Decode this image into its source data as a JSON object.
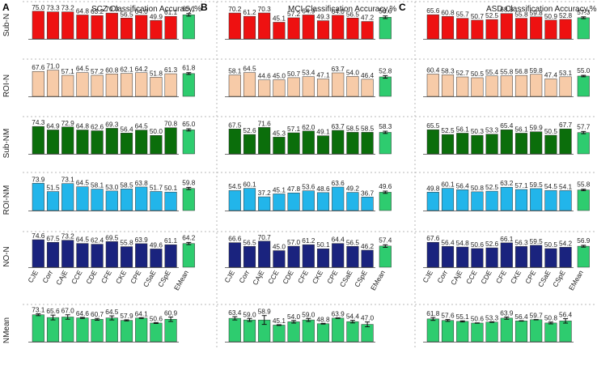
{
  "chart_data": {
    "type": "bar",
    "metrics": [
      "CJE",
      "Corr",
      "CAjE",
      "CCE",
      "CDE",
      "CFE",
      "CKE",
      "CPE",
      "CSaE",
      "CSpE"
    ],
    "mean_label": "EMean",
    "row_labels": [
      "Sub-N",
      "ROI-N",
      "Sub-NM",
      "ROI-NM",
      "NO-N",
      "NMean"
    ],
    "colors": [
      "#ee1111",
      "#f7cba8",
      "#0b6e0b",
      "#22b5ea",
      "#1a237e",
      "#2ecc6f"
    ],
    "mean_color": "#2ecc6f",
    "ylim": [
      0,
      90
    ],
    "panels": [
      {
        "letter": "A",
        "title": "SCZ Classification Accuracy,%",
        "rows": [
          {
            "values": [
              75.0,
              73.3,
              73.2,
              64.8,
              63.2,
              70.0,
              56.5,
              64.0,
              49.9,
              61.1
            ],
            "mean": 65.1,
            "mean_err": 3.5
          },
          {
            "values": [
              67.6,
              71.0,
              57.1,
              64.5,
              57.2,
              60.8,
              62.1,
              64.2,
              51.8,
              61.3
            ],
            "mean": 61.8,
            "mean_err": 2.5
          },
          {
            "values": [
              74.3,
              64.9,
              72.9,
              64.8,
              62.6,
              69.3,
              56.4,
              64.5,
              50.0,
              70.8
            ],
            "mean": 65.0,
            "mean_err": 3.0
          },
          {
            "values": [
              73.9,
              51.5,
              73.1,
              64.5,
              58.1,
              53.0,
              58.5,
              63.8,
              51.7,
              50.1
            ],
            "mean": 59.8,
            "mean_err": 3.0
          },
          {
            "values": [
              74.6,
              67.5,
              73.2,
              64.5,
              62.4,
              69.5,
              55.8,
              63.9,
              49.6,
              61.1
            ],
            "mean": 64.2,
            "mean_err": 3.0
          },
          {
            "values": [
              73.1,
              65.6,
              67.0,
              64.6,
              60.7,
              64.5,
              57.9,
              64.1,
              50.6,
              60.9
            ],
            "errors": [
              2.5,
              6.5,
              6.0,
              1.5,
              2.5,
              5.5,
              1.5,
              1.0,
              1.2,
              6.0
            ],
            "mean": null
          }
        ]
      },
      {
        "letter": "B",
        "title": "MCI Classification Accuracy,%",
        "rows": [
          {
            "values": [
              70.2,
              61.2,
              70.3,
              45.1,
              57.2,
              64.9,
              49.3,
              64.0,
              56.5,
              47.2
            ],
            "mean": 58.6,
            "mean_err": 3.5
          },
          {
            "values": [
              58.1,
              64.5,
              44.6,
              45.0,
              50.7,
              53.4,
              47.1,
              63.7,
              54.0,
              46.4
            ],
            "mean": 52.8,
            "mean_err": 3.5
          },
          {
            "values": [
              67.5,
              52.6,
              71.6,
              45.3,
              57.1,
              62.0,
              49.1,
              63.7,
              58.5,
              58.5
            ],
            "mean": 58.3,
            "mean_err": 3.0
          },
          {
            "values": [
              54.5,
              60.1,
              37.2,
              45.1,
              47.8,
              53.6,
              48.6,
              63.6,
              49.2,
              36.7
            ],
            "mean": 49.6,
            "mean_err": 3.0
          },
          {
            "values": [
              66.6,
              56.5,
              70.7,
              45.0,
              57.0,
              61.2,
              50.1,
              64.4,
              56.5,
              46.2
            ],
            "mean": 57.4,
            "mean_err": 3.5
          },
          {
            "values": [
              63.4,
              59.0,
              58.9,
              45.1,
              54.0,
              59.0,
              48.8,
              63.9,
              54.4,
              47.0
            ],
            "errors": [
              4.5,
              4.0,
              12.0,
              1.0,
              3.5,
              4.0,
              1.0,
              0.8,
              3.5,
              6.5
            ],
            "mean": null
          }
        ]
      },
      {
        "letter": "C",
        "title": "ASD Classification Accuracy,%",
        "rows": [
          {
            "values": [
              65.6,
              60.8,
              55.7,
              50.7,
              52.5,
              68.8,
              55.8,
              59.8,
              50.9,
              52.8
            ],
            "mean": 57.3,
            "mean_err": 2.5
          },
          {
            "values": [
              60.4,
              58.3,
              52.7,
              50.5,
              55.4,
              55.8,
              56.8,
              59.8,
              47.4,
              53.1
            ],
            "mean": 55.0,
            "mean_err": 2.0
          },
          {
            "values": [
              65.5,
              52.5,
              56.1,
              50.3,
              53.3,
              65.4,
              56.1,
              59.9,
              50.5,
              67.7
            ],
            "mean": 57.7,
            "mean_err": 3.0
          },
          {
            "values": [
              49.8,
              60.1,
              56.4,
              50.8,
              52.5,
              63.2,
              57.1,
              59.5,
              54.5,
              54.1
            ],
            "mean": 55.8,
            "mean_err": 2.0
          },
          {
            "values": [
              67.6,
              56.4,
              54.8,
              50.6,
              52.6,
              66.1,
              56.3,
              59.5,
              50.5,
              54.2
            ],
            "mean": 56.9,
            "mean_err": 2.5
          },
          {
            "values": [
              61.8,
              57.6,
              55.1,
              50.6,
              53.3,
              63.9,
              56.4,
              59.7,
              50.8,
              56.4
            ],
            "errors": [
              4.0,
              2.5,
              1.5,
              0.5,
              0.8,
              3.0,
              0.6,
              0.5,
              2.5,
              6.0
            ],
            "mean": null
          }
        ]
      }
    ]
  }
}
